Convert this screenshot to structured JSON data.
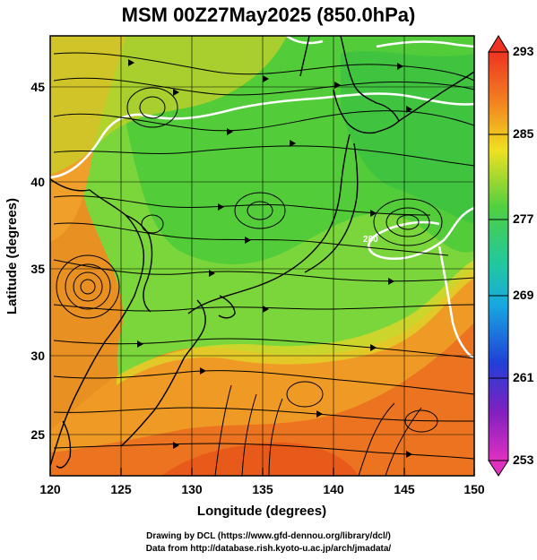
{
  "title": "MSM 00Z27May2025 (850.0hPa)",
  "x_axis": {
    "label": "Longitude (degrees)",
    "ticks": [
      "120",
      "125",
      "130",
      "135",
      "140",
      "145",
      "150"
    ]
  },
  "y_axis": {
    "label": "Latitude  (degrees)",
    "ticks": [
      "25",
      "30",
      "35",
      "40",
      "45"
    ]
  },
  "colorbar": {
    "ticks": [
      "293",
      "285",
      "277",
      "269",
      "261",
      "253"
    ]
  },
  "contour_label": "280",
  "footer": {
    "line1": "Drawing by DCL (https://www.gfd-dennou.org/library/dcl/)",
    "line2": "Data from http://database.rish.kyoto-u.ac.jp/arch/jmadata/"
  },
  "colors": {
    "warm": "#e8641e",
    "mid": "#f0d020",
    "cool": "#4cd04c",
    "contour": "#ffffff",
    "streamline": "#000000"
  }
}
